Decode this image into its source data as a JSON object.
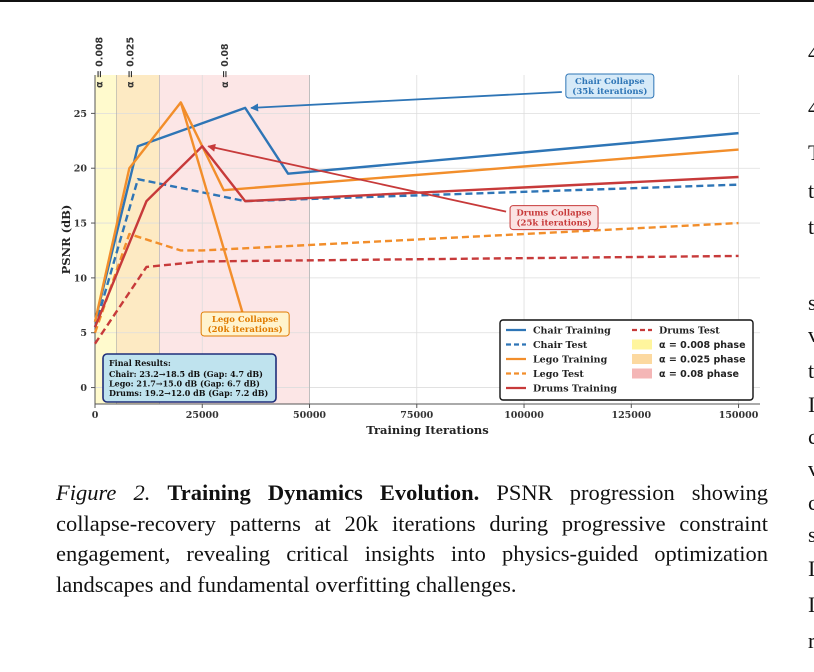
{
  "figure": {
    "caption_label": "Figure 2.",
    "caption_title": "Training Dynamics Evolution.",
    "caption_text": "PSNR progression showing collapse-recovery patterns at 20k iterations during progressive constraint engagement, revealing critical insights into physics-guided optimization landscapes and fundamental overfitting challenges."
  },
  "right_column_glyphs": [
    "4",
    "4",
    "T",
    "t",
    "t",
    "s",
    "v",
    "t",
    "I",
    "c",
    "v",
    "c",
    "s",
    "I",
    "I",
    "r"
  ],
  "chart_data": {
    "type": "line",
    "xlabel": "Training Iterations",
    "ylabel": "PSNR (dB)",
    "xlim": [
      0,
      155000
    ],
    "ylim": [
      -1.5,
      28.5
    ],
    "x_ticks": [
      0,
      25000,
      50000,
      75000,
      100000,
      125000,
      150000
    ],
    "y_ticks": [
      0,
      5,
      10,
      15,
      20,
      25
    ],
    "grid": true,
    "phases": [
      {
        "label": "α = 0.008",
        "legend": "α = 0.008 phase",
        "start": 0,
        "end": 5000,
        "color": "#fff9c4"
      },
      {
        "label": "α = 0.025",
        "legend": "α = 0.025 phase",
        "start": 5000,
        "end": 15000,
        "color": "#fde6b8"
      },
      {
        "label": "α = 0.08",
        "legend": "α = 0.08 phase",
        "start": 15000,
        "end": 50000,
        "color": "#fbe2e2"
      }
    ],
    "series": [
      {
        "name": "Chair Training",
        "color": "#2e75b6",
        "dash": false,
        "x": [
          0,
          10000,
          35000,
          45000,
          150000
        ],
        "y": [
          6,
          22,
          25.5,
          19.5,
          23.2
        ]
      },
      {
        "name": "Chair Test",
        "color": "#2e75b6",
        "dash": true,
        "x": [
          0,
          10000,
          35000,
          150000
        ],
        "y": [
          5.5,
          19,
          17,
          18.5
        ]
      },
      {
        "name": "Lego Training",
        "color": "#f28e2b",
        "dash": false,
        "x": [
          0,
          8000,
          20000,
          30000,
          150000
        ],
        "y": [
          6,
          20,
          26,
          18,
          21.7
        ]
      },
      {
        "name": "Lego Test",
        "color": "#f28e2b",
        "dash": true,
        "x": [
          0,
          8000,
          20000,
          25000,
          150000
        ],
        "y": [
          5,
          14,
          12.5,
          12.5,
          15
        ]
      },
      {
        "name": "Drums Training",
        "color": "#c73a3a",
        "dash": false,
        "x": [
          0,
          12000,
          25000,
          35000,
          150000
        ],
        "y": [
          5.5,
          17,
          22,
          17,
          19.2
        ]
      },
      {
        "name": "Drums Test",
        "color": "#c73a3a",
        "dash": true,
        "x": [
          0,
          12000,
          25000,
          150000
        ],
        "y": [
          4,
          11,
          11.5,
          12
        ]
      }
    ],
    "extra_lines": [
      {
        "color": "#f28e2b",
        "x": [
          20000,
          35000
        ],
        "y": [
          26,
          6
        ]
      }
    ],
    "annotations": [
      {
        "text": [
          "Chair Collapse",
          "(35k iterations)"
        ],
        "color": "#2e75b6",
        "bg": "#d6eaf8",
        "x": 35000,
        "y": 25.5,
        "tx": 120000,
        "ty": 27.5
      },
      {
        "text": [
          "Drums Collapse",
          "(25k iterations)"
        ],
        "color": "#c73a3a",
        "bg": "#fbe2e2",
        "x": 25000,
        "y": 22,
        "tx": 107000,
        "ty": 15.5
      },
      {
        "text": [
          "Lego Collapse",
          "(20k iterations)"
        ],
        "color": "#e07b00",
        "bg": "#fff3cd",
        "x": 35000,
        "y": 6,
        "tx": 35000,
        "ty": 5.8
      }
    ],
    "results_box": {
      "title": "Final Results:",
      "lines": [
        "Chair: 23.2→18.5 dB (Gap: 4.7 dB)",
        "Lego: 21.7→15.0 dB (Gap: 6.7 dB)",
        "Drums: 19.2→12.0 dB (Gap: 7.2 dB)"
      ]
    },
    "legend_placement": "bottom-right"
  }
}
